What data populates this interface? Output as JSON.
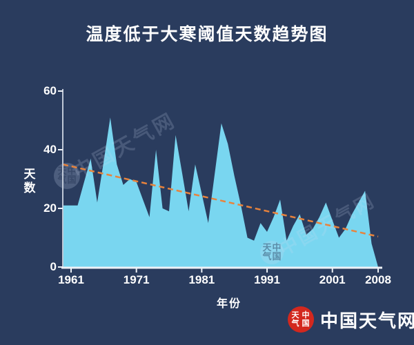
{
  "title": "温度低于大寒阈值天数趋势图",
  "watermark": {
    "text": "中国天气网",
    "seal_left": "天气",
    "seal_right": "中国"
  },
  "footer_logo": {
    "text": "中国天气网",
    "seal_left": "天气",
    "seal_right": "中国"
  },
  "colors": {
    "background": "#2a3c5e",
    "area_fill": "#79d6f0",
    "trend_line": "#e8833c",
    "axis_line": "#bfc8d6",
    "baseline": "#eef2f7",
    "text": "#ffffff",
    "logo_seal_red": "#d3281e",
    "watermark_text": "rgba(208,224,244,0.18)",
    "watermark_seal": "rgba(205,220,240,0.22)"
  },
  "chart_data": {
    "type": "area",
    "title": "温度低于大寒阈值天数趋势图",
    "xlabel": "年份",
    "ylabel": "天数",
    "start_year": 1961,
    "end_year": 2008,
    "xlim": [
      1961,
      2008
    ],
    "ylim": [
      0,
      60
    ],
    "y_ticks": [
      0,
      20,
      40,
      60
    ],
    "x_ticks": [
      1961,
      1971,
      1981,
      1991,
      2001,
      2008
    ],
    "grid": false,
    "legend": "none",
    "series_name": "天数",
    "values": [
      21,
      21,
      29,
      37,
      22,
      36,
      51,
      35,
      28,
      30,
      29,
      23,
      17,
      40,
      20,
      19,
      45,
      32,
      19,
      35,
      25,
      15,
      32,
      49,
      42,
      31,
      21,
      10,
      9,
      15,
      12,
      17,
      23,
      9,
      14,
      18,
      11,
      13,
      17,
      22,
      16,
      10,
      13,
      18,
      22,
      26,
      8,
      0
    ],
    "trend": {
      "style": "dashed",
      "start_value": 35,
      "end_value": 10.4
    }
  }
}
